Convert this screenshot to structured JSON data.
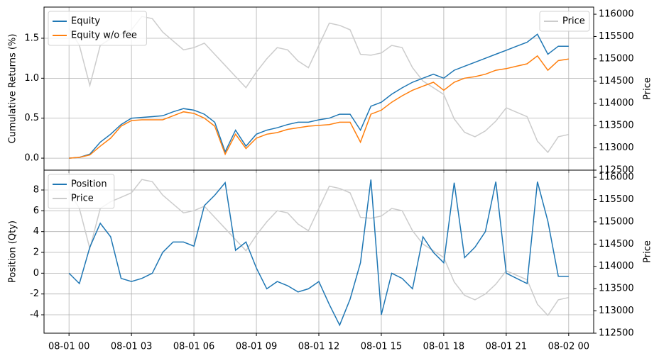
{
  "chart_data": [
    {
      "type": "line",
      "x": [
        0,
        0.5,
        1,
        1.5,
        2,
        2.5,
        3,
        3.5,
        4,
        4.5,
        5,
        5.5,
        6,
        6.5,
        7,
        7.5,
        8,
        8.5,
        9,
        9.5,
        10,
        10.5,
        11,
        11.5,
        12,
        12.5,
        13,
        13.5,
        14,
        14.5,
        15,
        15.5,
        16,
        16.5,
        17,
        17.5,
        18,
        18.5,
        19,
        19.5,
        20,
        20.5,
        21,
        21.5,
        22,
        22.5,
        23,
        23.5,
        24
      ],
      "xlim": [
        -1.2,
        25.2
      ],
      "xticks": [
        0,
        3,
        6,
        9,
        12,
        15,
        18,
        21,
        24
      ],
      "ylabel": "Cumulative Returns (%)",
      "ylim": [
        -0.15,
        1.89
      ],
      "yticks": [
        {
          "value": 0,
          "label": "0.0"
        },
        0.5,
        {
          "value": 1,
          "label": "1.0"
        },
        1.5
      ],
      "y2label": "Price",
      "y2lim": [
        112500,
        116160
      ],
      "y2ticks": [
        112500,
        113000,
        113500,
        114000,
        114500,
        115000,
        115500,
        116000
      ],
      "grid": true,
      "legend": {
        "y": "upper left",
        "y2": "upper right"
      },
      "series": [
        {
          "name": "Price",
          "color": "#cccccc",
          "axis": "y2",
          "values": [
            115680,
            115300,
            114400,
            115300,
            115450,
            115550,
            115650,
            115950,
            115900,
            115600,
            115400,
            115200,
            115250,
            115350,
            115100,
            114850,
            114600,
            114350,
            114700,
            115000,
            115250,
            115200,
            114950,
            114800,
            115300,
            115800,
            115750,
            115650,
            115100,
            115080,
            115130,
            115300,
            115250,
            114800,
            114500,
            114350,
            114200,
            113650,
            113350,
            113250,
            113380,
            113600,
            113900,
            113800,
            113700,
            113150,
            112900,
            113250,
            113300
          ]
        },
        {
          "name": "Equity",
          "color": "#1f77b4",
          "values": [
            0,
            0.01,
            0.05,
            0.2,
            0.3,
            0.42,
            0.5,
            0.51,
            0.52,
            0.53,
            0.58,
            0.62,
            0.6,
            0.55,
            0.45,
            0.08,
            0.35,
            0.15,
            0.3,
            0.35,
            0.38,
            0.42,
            0.45,
            0.45,
            0.48,
            0.5,
            0.55,
            0.55,
            0.35,
            0.65,
            0.7,
            0.8,
            0.88,
            0.95,
            1.0,
            1.05,
            1.0,
            1.1,
            1.15,
            1.2,
            1.25,
            1.3,
            1.35,
            1.4,
            1.45,
            1.55,
            1.3,
            1.4,
            1.4
          ]
        },
        {
          "name": "Equity w/o fee",
          "color": "#ff7f0e",
          "values": [
            0,
            0.01,
            0.04,
            0.15,
            0.25,
            0.4,
            0.47,
            0.48,
            0.48,
            0.48,
            0.53,
            0.58,
            0.56,
            0.5,
            0.4,
            0.05,
            0.3,
            0.12,
            0.25,
            0.3,
            0.32,
            0.36,
            0.38,
            0.4,
            0.41,
            0.42,
            0.45,
            0.45,
            0.2,
            0.55,
            0.6,
            0.7,
            0.78,
            0.85,
            0.9,
            0.95,
            0.85,
            0.95,
            1.0,
            1.02,
            1.05,
            1.1,
            1.12,
            1.15,
            1.18,
            1.28,
            1.1,
            1.22,
            1.24
          ]
        }
      ]
    },
    {
      "type": "line",
      "x": [
        0,
        0.5,
        1,
        1.5,
        2,
        2.5,
        3,
        3.5,
        4,
        4.5,
        5,
        5.5,
        6,
        6.5,
        7,
        7.5,
        8,
        8.5,
        9,
        9.5,
        10,
        10.5,
        11,
        11.5,
        12,
        12.5,
        13,
        13.5,
        14,
        14.5,
        15,
        15.5,
        16,
        16.5,
        17,
        17.5,
        18,
        18.5,
        19,
        19.5,
        20,
        20.5,
        21,
        21.5,
        22,
        22.5,
        23,
        23.5,
        24
      ],
      "xlim": [
        -1.2,
        25.2
      ],
      "xticks": [
        {
          "value": 0,
          "label": "08-01 00"
        },
        {
          "value": 3,
          "label": "08-01 03"
        },
        {
          "value": 6,
          "label": "08-01 06"
        },
        {
          "value": 9,
          "label": "08-01 09"
        },
        {
          "value": 12,
          "label": "08-01 12"
        },
        {
          "value": 15,
          "label": "08-01 15"
        },
        {
          "value": 18,
          "label": "08-01 18"
        },
        {
          "value": 21,
          "label": "08-01 21"
        },
        {
          "value": 24,
          "label": "08-02 00"
        }
      ],
      "ylabel": "Position (Qty)",
      "ylim": [
        -5.77,
        9.91
      ],
      "yticks": [
        -4,
        -2,
        0,
        2,
        4,
        6,
        8
      ],
      "y2label": "Price",
      "y2lim": [
        112500,
        116160
      ],
      "y2ticks": [
        112500,
        113000,
        113500,
        114000,
        114500,
        115000,
        115500,
        116000
      ],
      "grid": true,
      "legend": "upper left",
      "series": [
        {
          "name": "Position",
          "color": "#1f77b4",
          "values": [
            0,
            -1,
            2.5,
            4.8,
            3.5,
            -0.5,
            -0.8,
            -0.5,
            0,
            2,
            3,
            3,
            2.6,
            6.5,
            7.5,
            8.7,
            2.2,
            3,
            0.5,
            -1.5,
            -0.8,
            -1.2,
            -1.8,
            -1.5,
            -0.8,
            -3,
            -5,
            -2.5,
            1,
            9,
            -4,
            0,
            -0.5,
            -1.5,
            3.5,
            2,
            1,
            8.7,
            1.5,
            2.5,
            4,
            8.8,
            0,
            -0.5,
            -1,
            8.8,
            5,
            -0.3,
            -0.3
          ]
        },
        {
          "name": "Price",
          "color": "#cccccc",
          "axis": "y2",
          "values": [
            115680,
            115300,
            114400,
            115300,
            115450,
            115550,
            115650,
            115950,
            115900,
            115600,
            115400,
            115200,
            115250,
            115350,
            115100,
            114850,
            114600,
            114350,
            114700,
            115000,
            115250,
            115200,
            114950,
            114800,
            115300,
            115800,
            115750,
            115650,
            115100,
            115080,
            115130,
            115300,
            115250,
            114800,
            114500,
            114350,
            114200,
            113650,
            113350,
            113250,
            113380,
            113600,
            113900,
            113800,
            113700,
            113150,
            112900,
            113250,
            113300
          ]
        }
      ]
    }
  ]
}
